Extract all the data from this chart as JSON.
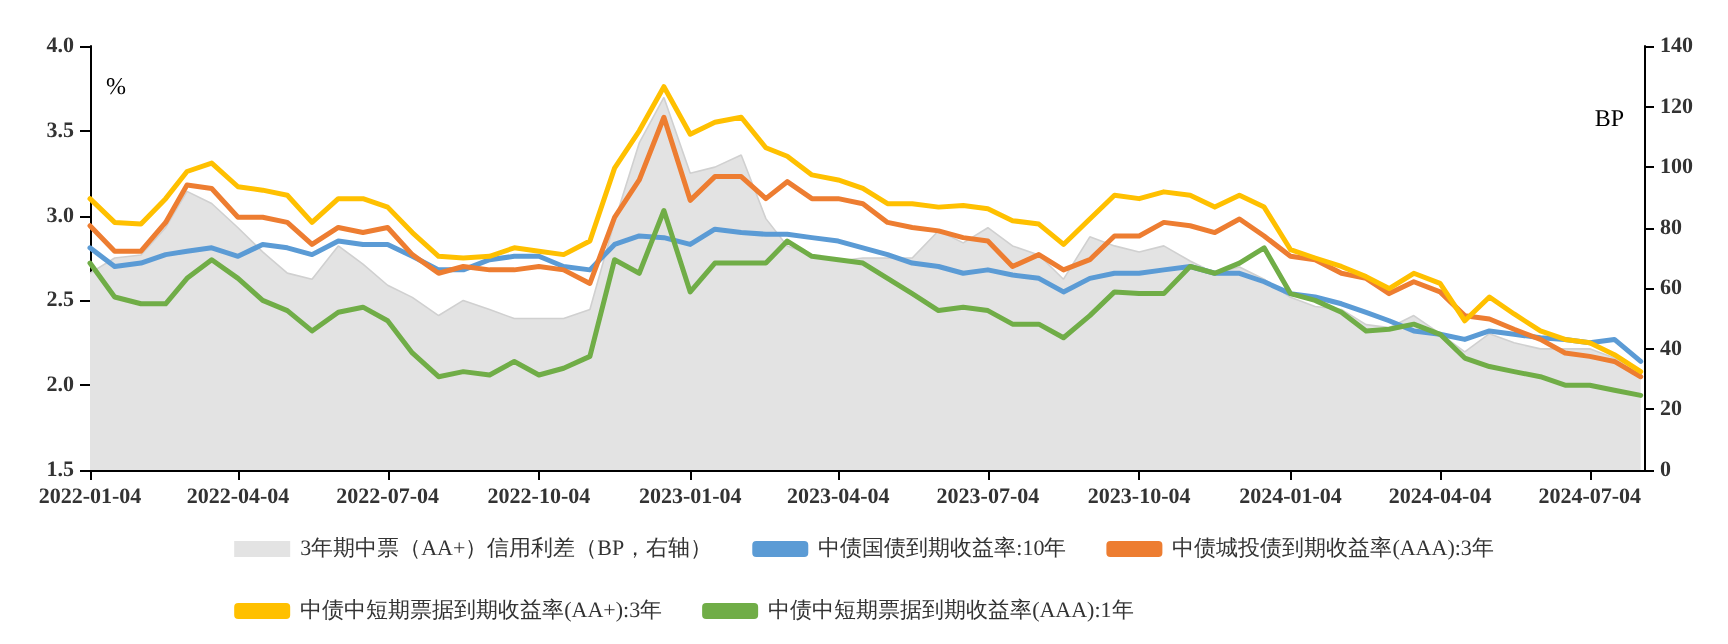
{
  "chart_data": {
    "type": "line",
    "ylabel": "%",
    "y2label": "BP",
    "x": [
      "2022-01-04",
      "2022-01-19",
      "2022-02-04",
      "2022-02-19",
      "2022-03-04",
      "2022-03-19",
      "2022-04-04",
      "2022-04-19",
      "2022-05-04",
      "2022-05-19",
      "2022-06-04",
      "2022-06-19",
      "2022-07-04",
      "2022-07-19",
      "2022-08-04",
      "2022-08-19",
      "2022-09-04",
      "2022-09-19",
      "2022-10-04",
      "2022-10-19",
      "2022-11-04",
      "2022-11-19",
      "2022-12-04",
      "2022-12-19",
      "2023-01-04",
      "2023-01-19",
      "2023-02-04",
      "2023-02-19",
      "2023-03-04",
      "2023-03-19",
      "2023-04-04",
      "2023-04-19",
      "2023-05-04",
      "2023-05-19",
      "2023-06-04",
      "2023-06-19",
      "2023-07-04",
      "2023-07-19",
      "2023-08-04",
      "2023-08-19",
      "2023-09-04",
      "2023-09-19",
      "2023-10-04",
      "2023-10-19",
      "2023-11-04",
      "2023-11-19",
      "2023-12-04",
      "2023-12-19",
      "2024-01-04",
      "2024-01-19",
      "2024-02-04",
      "2024-02-19",
      "2024-03-04",
      "2024-03-19",
      "2024-04-04",
      "2024-04-19",
      "2024-05-04",
      "2024-05-19",
      "2024-06-04",
      "2024-06-19",
      "2024-07-04",
      "2024-07-19",
      "2024-08-04"
    ],
    "series": [
      {
        "name": "3年期中票（AA+）信用利差（BP，右轴）",
        "type": "area",
        "axis": "y2",
        "color": "#e3e3e3",
        "values": [
          65,
          70,
          71,
          80,
          92,
          88,
          80,
          72,
          65,
          63,
          74,
          68,
          61,
          57,
          51,
          56,
          53,
          50,
          50,
          50,
          53,
          82,
          108,
          123,
          98,
          100,
          104,
          83,
          74,
          71,
          69,
          70,
          70,
          70,
          79,
          75,
          80,
          74,
          71,
          63,
          77,
          74,
          72,
          74,
          69,
          65,
          67,
          63,
          57,
          54,
          53,
          48,
          47,
          51,
          45,
          39,
          45,
          42,
          40,
          40,
          40,
          37,
          33
        ]
      },
      {
        "name": "中债国债到期收益率:10年",
        "color": "#5b9bd5",
        "values": [
          2.81,
          2.7,
          2.72,
          2.77,
          2.79,
          2.81,
          2.76,
          2.83,
          2.81,
          2.77,
          2.85,
          2.83,
          2.83,
          2.76,
          2.68,
          2.68,
          2.74,
          2.76,
          2.76,
          2.7,
          2.68,
          2.83,
          2.88,
          2.87,
          2.83,
          2.92,
          2.9,
          2.89,
          2.89,
          2.87,
          2.85,
          2.81,
          2.77,
          2.72,
          2.7,
          2.66,
          2.68,
          2.65,
          2.63,
          2.55,
          2.63,
          2.66,
          2.66,
          2.68,
          2.7,
          2.66,
          2.66,
          2.61,
          2.54,
          2.52,
          2.48,
          2.43,
          2.38,
          2.32,
          2.3,
          2.27,
          2.32,
          2.3,
          2.28,
          2.27,
          2.25,
          2.27,
          2.14
        ]
      },
      {
        "name": "中债城投债到期收益率(AAA):3年",
        "color": "#ed7d31",
        "values": [
          2.94,
          2.79,
          2.79,
          2.96,
          3.18,
          3.16,
          2.99,
          2.99,
          2.96,
          2.83,
          2.93,
          2.9,
          2.93,
          2.77,
          2.66,
          2.7,
          2.68,
          2.68,
          2.7,
          2.68,
          2.6,
          2.99,
          3.21,
          3.58,
          3.09,
          3.23,
          3.23,
          3.1,
          3.2,
          3.1,
          3.1,
          3.07,
          2.96,
          2.93,
          2.91,
          2.87,
          2.85,
          2.7,
          2.77,
          2.68,
          2.74,
          2.88,
          2.88,
          2.96,
          2.94,
          2.9,
          2.98,
          2.88,
          2.76,
          2.74,
          2.66,
          2.63,
          2.54,
          2.61,
          2.55,
          2.41,
          2.39,
          2.33,
          2.27,
          2.19,
          2.17,
          2.14,
          2.05
        ]
      },
      {
        "name": "中债中短期票据到期收益率(AA+):3年",
        "color": "#ffc000",
        "values": [
          3.1,
          2.96,
          2.95,
          3.1,
          3.26,
          3.31,
          3.17,
          3.15,
          3.12,
          2.96,
          3.1,
          3.1,
          3.05,
          2.9,
          2.76,
          2.75,
          2.76,
          2.81,
          2.79,
          2.77,
          2.85,
          3.28,
          3.5,
          3.76,
          3.48,
          3.55,
          3.58,
          3.4,
          3.35,
          3.24,
          3.21,
          3.16,
          3.07,
          3.07,
          3.05,
          3.06,
          3.04,
          2.97,
          2.95,
          2.83,
          2.98,
          3.12,
          3.1,
          3.14,
          3.12,
          3.05,
          3.12,
          3.05,
          2.8,
          2.75,
          2.7,
          2.64,
          2.57,
          2.66,
          2.6,
          2.38,
          2.52,
          2.42,
          2.32,
          2.27,
          2.25,
          2.18,
          2.08
        ]
      },
      {
        "name": "中债中短期票据到期收益率(AAA):1年",
        "color": "#70ad47",
        "values": [
          2.72,
          2.52,
          2.48,
          2.48,
          2.63,
          2.74,
          2.63,
          2.5,
          2.44,
          2.32,
          2.43,
          2.46,
          2.38,
          2.19,
          2.05,
          2.08,
          2.06,
          2.14,
          2.06,
          2.1,
          2.17,
          2.74,
          2.66,
          3.03,
          2.55,
          2.72,
          2.72,
          2.72,
          2.85,
          2.76,
          2.74,
          2.72,
          2.63,
          2.54,
          2.44,
          2.46,
          2.44,
          2.36,
          2.36,
          2.28,
          2.41,
          2.55,
          2.54,
          2.54,
          2.7,
          2.66,
          2.72,
          2.81,
          2.54,
          2.5,
          2.43,
          2.32,
          2.33,
          2.36,
          2.3,
          2.16,
          2.11,
          2.08,
          2.05,
          2.0,
          2.0,
          1.97,
          1.94
        ]
      }
    ],
    "xlim": [
      "2022-01-04",
      "2024-08-06"
    ],
    "xticks": [
      "2022-01-04",
      "2022-04-04",
      "2022-07-04",
      "2022-10-04",
      "2023-01-04",
      "2023-04-04",
      "2023-07-04",
      "2023-10-04",
      "2024-01-04",
      "2024-04-04",
      "2024-07-04"
    ],
    "ylim": [
      1.5,
      4.0
    ],
    "yticks": [
      {
        "value": 1.5,
        "label": "1.5"
      },
      {
        "value": 2,
        "label": "2.0"
      },
      {
        "value": 2.5,
        "label": "2.5"
      },
      {
        "value": 3,
        "label": "3.0"
      },
      {
        "value": 3.5,
        "label": "3.5"
      },
      {
        "value": 4,
        "label": "4.0"
      }
    ],
    "y2lim": [
      0,
      140
    ],
    "y2ticks": [
      0,
      20,
      40,
      60,
      80,
      100,
      120,
      140
    ],
    "grid": false,
    "legend": "bottom",
    "line_style": "solid"
  }
}
